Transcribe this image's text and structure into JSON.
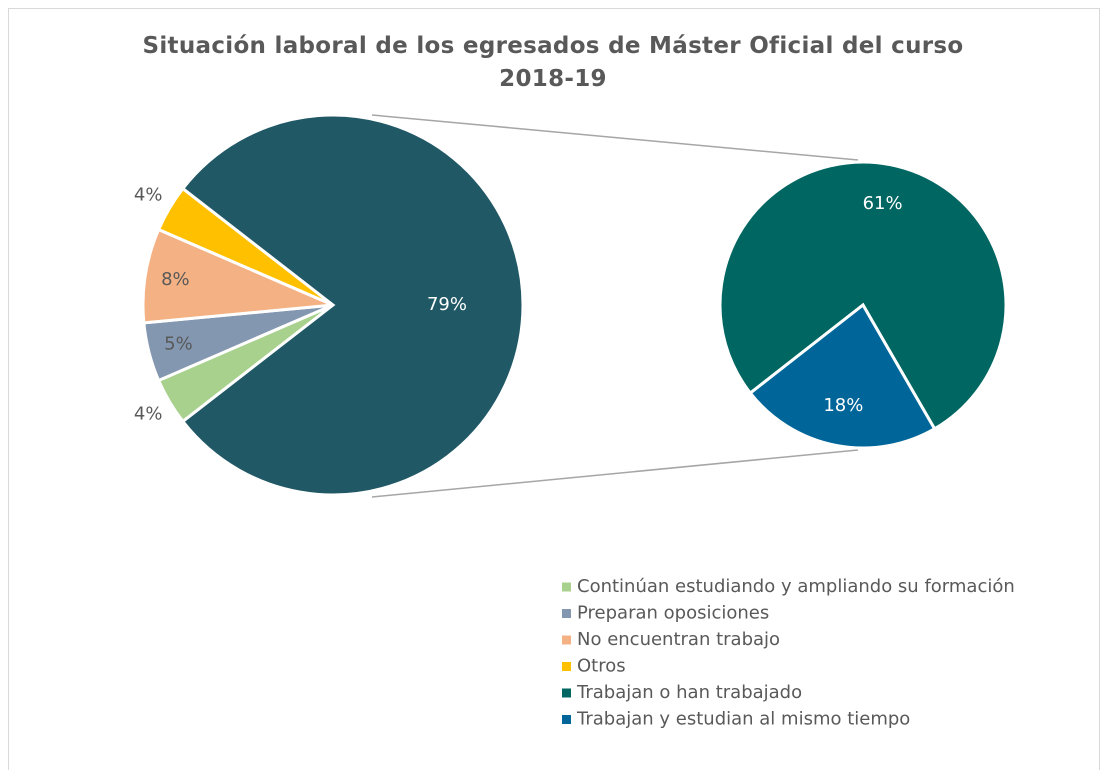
{
  "chart_data": {
    "type": "pie-of-pie",
    "title": "Situación laboral de los egresados de Máster Oficial del curso 2018-19",
    "series": [
      {
        "categories": [
          "Continúan estudiando y ampliando su formación",
          "Preparan oposiciones",
          "No encuentran trabajo",
          "Otros",
          null
        ],
        "values": [
          4,
          5,
          8,
          4,
          79
        ],
        "value_labels": [
          "4%",
          "5%",
          "8%",
          "4%",
          "79%"
        ],
        "colors": [
          "#a9d18e",
          "#8497b0",
          "#f4b183",
          "#ffc000",
          "#215866"
        ]
      },
      {
        "categories": [
          "Trabajan o han trabajado",
          "Trabajan y estudian al mismo tiempo"
        ],
        "values": [
          61,
          18
        ],
        "value_labels": [
          "61%",
          "18%"
        ],
        "colors": [
          "#006661",
          "#006699"
        ]
      }
    ]
  }
}
